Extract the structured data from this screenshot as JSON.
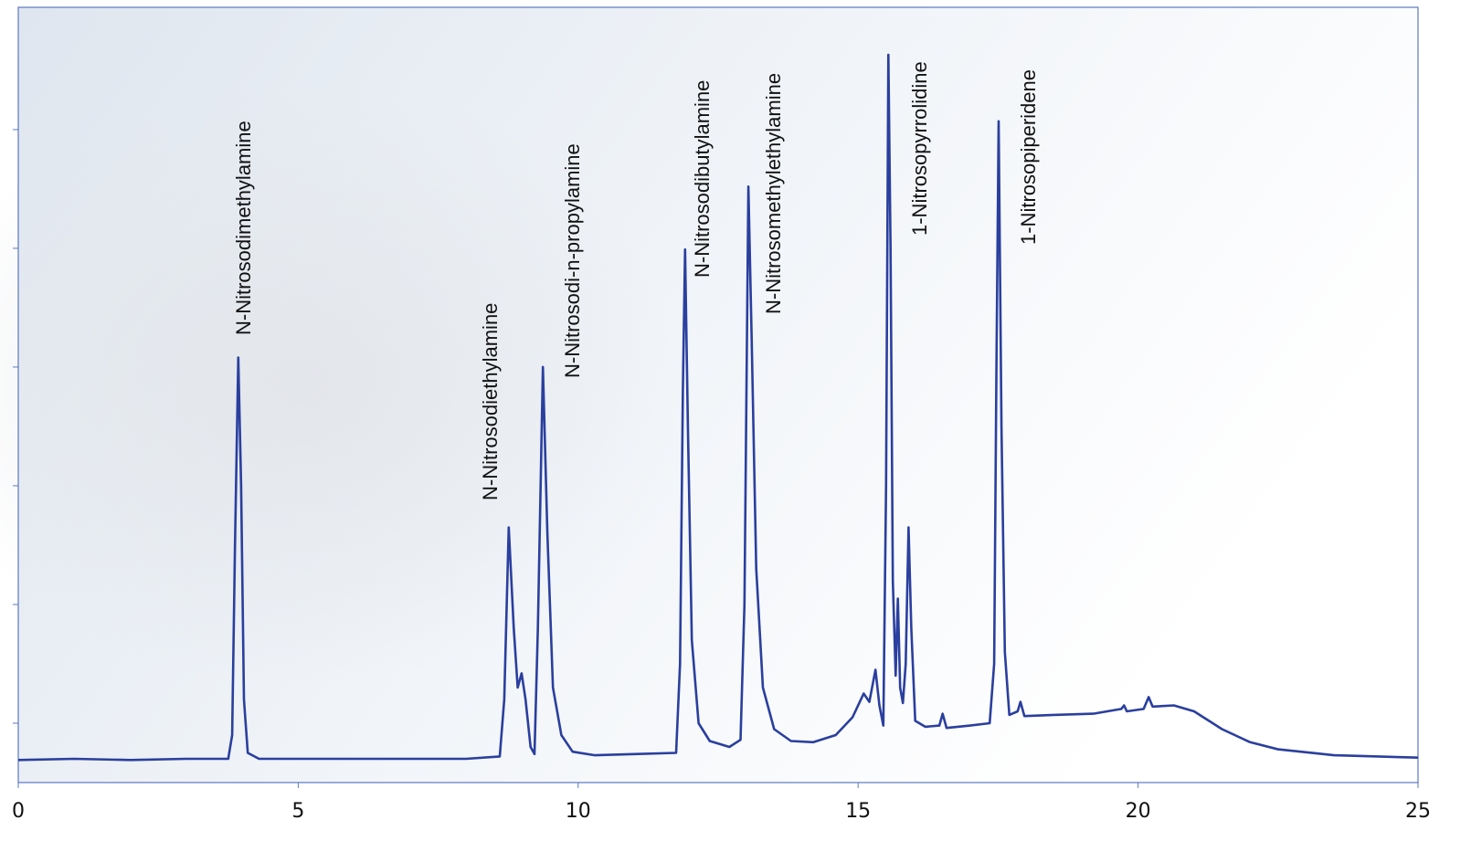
{
  "chart_data": {
    "type": "line",
    "annotations": [
      "N-Nitrosodimethylamine",
      "N-Nitrosodiethylamine",
      "N-Nitrosodi-n-propylamine",
      "N-Nitrosodibutylamine",
      "N-Nitrosomethylethylamine",
      "1-Nitrosopyrrolidine",
      "1-Nitrosopiperidene"
    ],
    "xlim": [
      0,
      25
    ],
    "xticks": [
      0,
      5,
      10,
      15,
      20,
      25
    ],
    "ylim": [
      0.5,
      7.03
    ],
    "yticks": [
      1,
      2,
      3,
      4,
      5,
      6
    ],
    "series": [
      {
        "color": "#2a3f9e",
        "x": [
          0,
          1,
          2,
          3,
          3.75,
          3.82,
          3.87,
          3.93,
          3.98,
          4.03,
          4.1,
          4.3,
          6,
          8,
          8.6,
          8.68,
          8.76,
          8.85,
          8.92,
          8.99,
          9.06,
          9.15,
          9.22,
          9.28,
          9.37,
          9.45,
          9.55,
          9.7,
          9.9,
          10.3,
          11,
          11.75,
          11.82,
          11.87,
          11.91,
          11.96,
          12.03,
          12.15,
          12.35,
          12.7,
          12.9,
          12.97,
          13.04,
          13.1,
          13.18,
          13.3,
          13.5,
          13.8,
          14.2,
          14.6,
          14.9,
          15.1,
          15.2,
          15.31,
          15.38,
          15.45,
          15.5,
          15.54,
          15.58,
          15.62,
          15.67,
          15.71,
          15.75,
          15.8,
          15.85,
          15.9,
          15.95,
          16.02,
          16.2,
          16.45,
          16.51,
          16.58,
          17,
          17.35,
          17.43,
          17.47,
          17.51,
          17.56,
          17.62,
          17.7,
          17.85,
          17.9,
          17.97,
          18.5,
          19.2,
          19.7,
          19.75,
          19.8,
          20.1,
          20.19,
          20.26,
          20.64,
          21,
          21.5,
          22,
          22.5,
          23.5,
          25
        ],
        "values": [
          0.69,
          0.7,
          0.69,
          0.7,
          0.7,
          0.9,
          2.5,
          4.08,
          3.0,
          1.2,
          0.75,
          0.7,
          0.7,
          0.7,
          0.72,
          1.2,
          2.65,
          1.8,
          1.3,
          1.42,
          1.2,
          0.8,
          0.74,
          1.8,
          4.0,
          2.6,
          1.3,
          0.9,
          0.76,
          0.73,
          0.74,
          0.75,
          1.5,
          3.8,
          4.99,
          3.5,
          1.7,
          1.0,
          0.85,
          0.8,
          0.86,
          2.0,
          5.52,
          4.2,
          2.3,
          1.3,
          0.95,
          0.85,
          0.84,
          0.9,
          1.05,
          1.25,
          1.18,
          1.45,
          1.15,
          0.98,
          3.0,
          6.63,
          5.0,
          2.2,
          1.4,
          2.05,
          1.3,
          1.17,
          1.5,
          2.65,
          1.8,
          1.02,
          0.97,
          0.98,
          1.08,
          0.96,
          0.98,
          1.0,
          1.5,
          4.0,
          6.07,
          3.5,
          1.6,
          1.07,
          1.1,
          1.18,
          1.06,
          1.07,
          1.08,
          1.12,
          1.15,
          1.1,
          1.12,
          1.22,
          1.14,
          1.15,
          1.1,
          0.95,
          0.84,
          0.78,
          0.73,
          0.71
        ]
      }
    ]
  }
}
